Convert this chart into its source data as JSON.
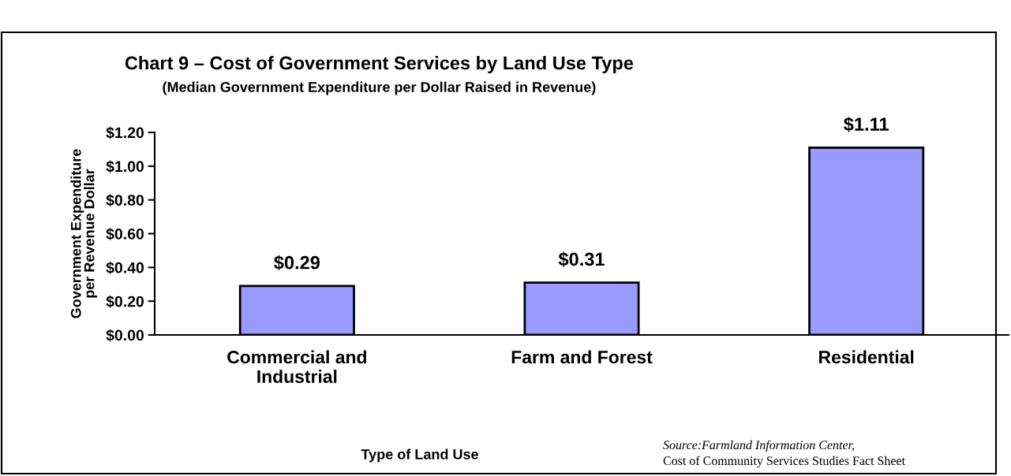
{
  "chart_data": {
    "type": "bar",
    "title": "Chart 9 – Cost of Government Services by Land Use Type",
    "subtitle": "(Median Government Expenditure per Dollar Raised in Revenue)",
    "xlabel": "Type of Land Use",
    "ylabel": "Government Expenditure\nper Revenue Dollar",
    "categories": [
      "Commercial and\nIndustrial",
      "Farm and Forest",
      "Residential"
    ],
    "values": [
      0.29,
      0.31,
      1.11
    ],
    "value_labels": [
      "$0.29",
      "$0.31",
      "$1.11"
    ],
    "color": "#9999ff",
    "ylim": [
      0,
      1.2
    ],
    "yticks": [
      {
        "value": 0,
        "label": "$0.00"
      },
      {
        "value": 0.2,
        "label": "$0.20"
      },
      {
        "value": 0.4,
        "label": "$0.40"
      },
      {
        "value": 0.6,
        "label": "$0.60"
      },
      {
        "value": 0.8,
        "label": "$0.80"
      },
      {
        "value": 1.0,
        "label": "$1.00"
      },
      {
        "value": 1.2,
        "label": "$1.20"
      }
    ],
    "grid": false,
    "legend": false,
    "annotations": [
      "Source:Farmland Information Center,",
      "Cost of Community Services Studies Fact Sheet"
    ]
  }
}
